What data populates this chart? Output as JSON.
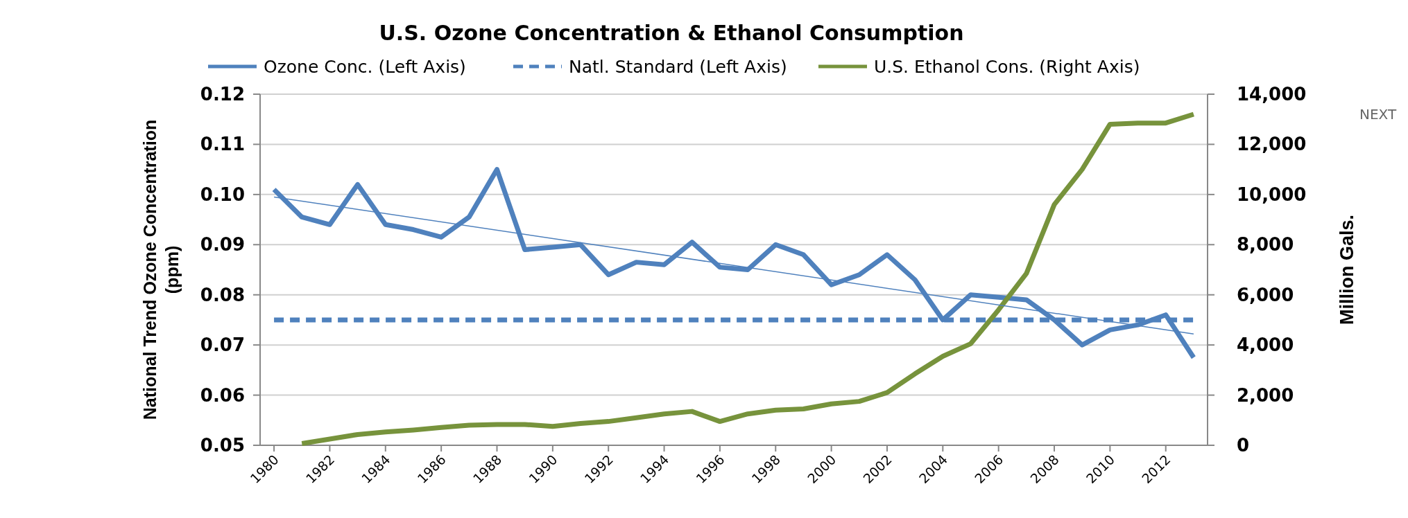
{
  "chart_data": {
    "type": "line",
    "title": "U.S. Ozone Concentration & Ethanol Consumption",
    "ylabel": "National Trend Ozone Concentration (ppm)",
    "y2label": "Million Gals.",
    "x": [
      1980,
      1981,
      1982,
      1983,
      1984,
      1985,
      1986,
      1987,
      1988,
      1989,
      1990,
      1991,
      1992,
      1993,
      1994,
      1995,
      1996,
      1997,
      1998,
      1999,
      2000,
      2001,
      2002,
      2003,
      2004,
      2005,
      2006,
      2007,
      2008,
      2009,
      2010,
      2011,
      2012,
      2013
    ],
    "xlim": [
      1979.5,
      2013.5
    ],
    "xticks": [
      1980,
      1982,
      1984,
      1986,
      1988,
      1990,
      1992,
      1994,
      1996,
      1998,
      2000,
      2002,
      2004,
      2006,
      2008,
      2010,
      2012
    ],
    "ylim": [
      0.05,
      0.12
    ],
    "yticks": [
      {
        "value": 0.05,
        "label": "0.05"
      },
      {
        "value": 0.06,
        "label": "0.06"
      },
      {
        "value": 0.07,
        "label": "0.07"
      },
      {
        "value": 0.08,
        "label": "0.08"
      },
      {
        "value": 0.09,
        "label": "0.09"
      },
      {
        "value": 0.1,
        "label": "0.10"
      },
      {
        "value": 0.11,
        "label": "0.11"
      },
      {
        "value": 0.12,
        "label": "0.12"
      }
    ],
    "y2lim": [
      0,
      14000
    ],
    "y2ticks": [
      {
        "value": 0,
        "label": "0"
      },
      {
        "value": 2000,
        "label": "2,000"
      },
      {
        "value": 4000,
        "label": "4,000"
      },
      {
        "value": 6000,
        "label": "6,000"
      },
      {
        "value": 8000,
        "label": "8,000"
      },
      {
        "value": 10000,
        "label": "10,000"
      },
      {
        "value": 12000,
        "label": "12,000"
      },
      {
        "value": 14000,
        "label": "14,000"
      }
    ],
    "grid": "y",
    "legend": "top",
    "marker": "none",
    "annotations": [
      "NEXT"
    ],
    "series": [
      {
        "name": "Ozone Conc. (Left Axis)",
        "color": "#4f81bd",
        "values": [
          0.101,
          0.0955,
          0.094,
          0.102,
          0.094,
          0.093,
          0.0915,
          0.0955,
          0.105,
          0.089,
          0.0895,
          0.09,
          0.084,
          0.0865,
          0.086,
          0.0905,
          0.0855,
          0.085,
          0.09,
          0.088,
          0.082,
          0.084,
          0.088,
          0.083,
          0.075,
          0.08,
          0.0795,
          0.079,
          0.075,
          0.07,
          0.073,
          0.074,
          0.076,
          0.0675
        ]
      },
      {
        "name": "Natl. Standard (Left Axis)",
        "color": "#4f81bd",
        "line_style": "dashed",
        "x": [
          1980,
          2013
        ],
        "values": [
          0.075,
          0.075
        ]
      },
      {
        "name": "U.S. Ethanol Cons. (Right Axis)",
        "color": "#77933c",
        "axis": "y2",
        "x": [
          1981,
          1982,
          1983,
          1984,
          1985,
          1986,
          1987,
          1988,
          1989,
          1990,
          1991,
          1992,
          1993,
          1994,
          1995,
          1996,
          1997,
          1998,
          1999,
          2000,
          2001,
          2002,
          2003,
          2004,
          2005,
          2006,
          2007,
          2008,
          2009,
          2010,
          2011,
          2012,
          2013
        ],
        "values": [
          70,
          250,
          430,
          530,
          610,
          710,
          800,
          830,
          830,
          750,
          870,
          950,
          1100,
          1250,
          1350,
          950,
          1250,
          1400,
          1450,
          1650,
          1750,
          2100,
          2850,
          3550,
          4050,
          5400,
          6850,
          9600,
          11000,
          12800,
          12850,
          12850,
          13200
        ]
      },
      {
        "type": "line",
        "color": "#4f81bd",
        "x": [
          1980,
          2013
        ],
        "values": [
          0.0995,
          0.0722
        ]
      }
    ]
  }
}
